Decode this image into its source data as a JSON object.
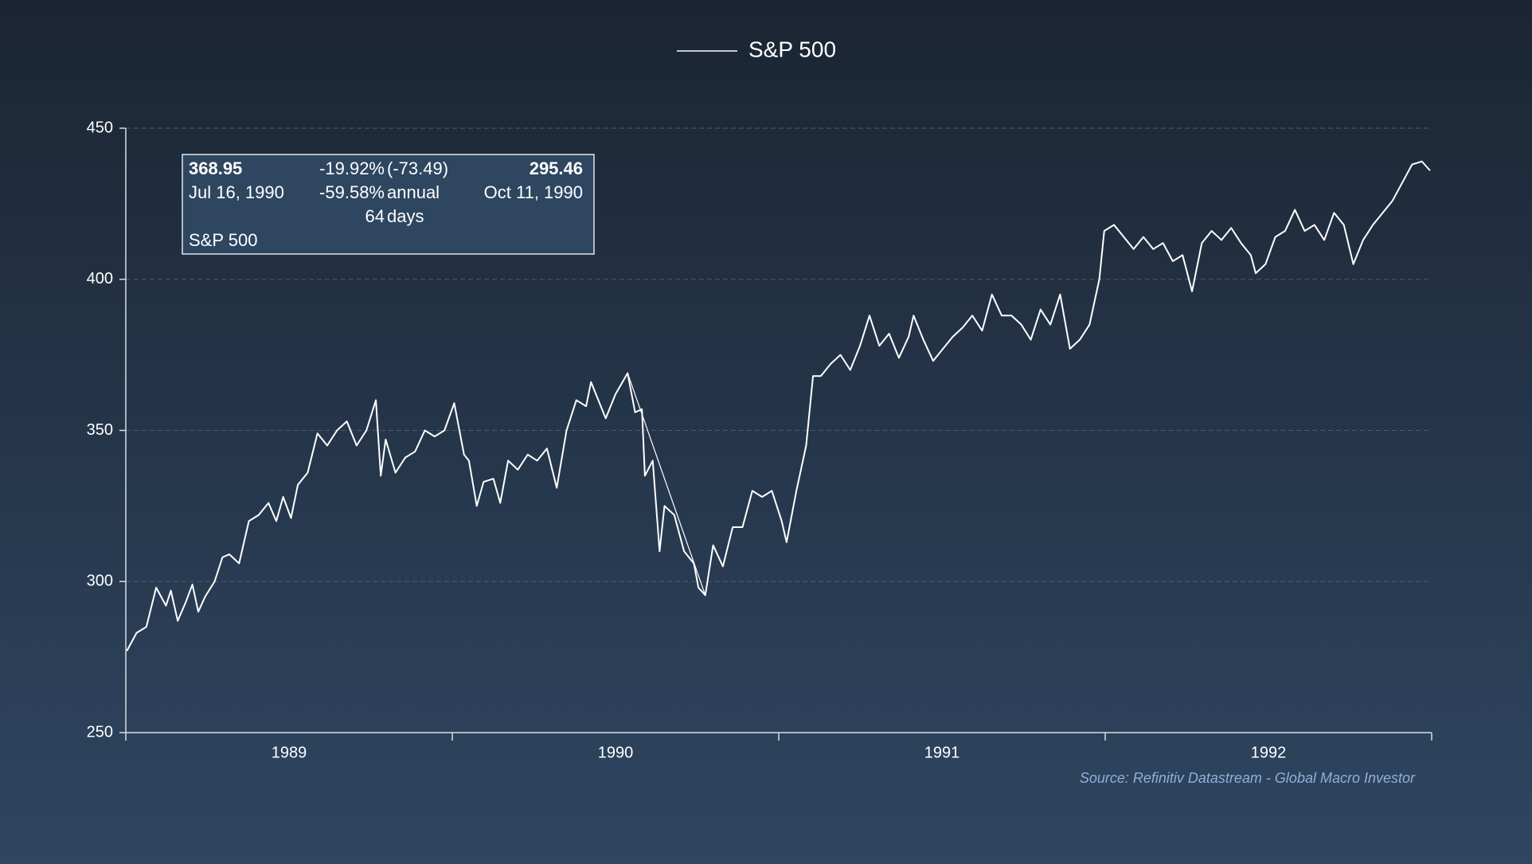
{
  "chart_data": {
    "type": "line",
    "legend": "top",
    "grid": true,
    "series": [
      {
        "name": "S&P 500",
        "color": "#ffffff",
        "values": [
          277,
          283,
          285,
          298,
          292,
          297,
          287,
          293,
          299,
          290,
          295,
          300,
          308,
          309,
          306,
          320,
          322,
          326,
          320,
          328,
          321,
          332,
          336,
          349,
          345,
          350,
          353,
          345,
          350,
          360,
          335,
          347,
          336,
          341,
          343,
          350,
          348,
          350,
          359,
          342,
          340,
          325,
          333,
          334,
          326,
          340,
          337,
          342,
          340,
          344,
          331,
          350,
          360,
          358,
          366,
          358,
          354,
          362,
          368.95,
          356,
          357,
          335,
          340,
          310,
          325,
          322,
          310,
          306,
          298,
          295.46,
          312,
          305,
          318,
          318,
          330,
          328,
          330,
          320,
          313,
          330,
          345,
          368,
          368,
          372,
          375,
          370,
          378,
          388,
          378,
          382,
          374,
          381,
          388,
          380,
          373,
          377,
          381,
          384,
          388,
          383,
          395,
          388,
          388,
          385,
          380,
          390,
          385,
          395,
          377,
          380,
          385,
          400,
          416,
          418,
          414,
          410,
          414,
          410,
          412,
          406,
          408,
          396,
          412,
          416,
          413,
          417,
          412,
          408,
          402,
          405,
          414,
          416,
          423,
          416,
          418,
          413,
          422,
          418,
          405,
          413,
          418,
          422,
          426,
          432,
          438,
          439,
          436
        ]
      }
    ],
    "x": [
      1989.003,
      1989.033,
      1989.063,
      1989.093,
      1989.123,
      1989.138,
      1989.159,
      1989.183,
      1989.204,
      1989.222,
      1989.243,
      1989.272,
      1989.296,
      1989.317,
      1989.347,
      1989.377,
      1989.407,
      1989.437,
      1989.461,
      1989.482,
      1989.506,
      1989.527,
      1989.557,
      1989.587,
      1989.617,
      1989.647,
      1989.677,
      1989.707,
      1989.737,
      1989.766,
      1989.781,
      1989.796,
      1989.826,
      1989.856,
      1989.886,
      1989.916,
      1989.946,
      1989.976,
      1990.006,
      1990.036,
      1990.051,
      1990.075,
      1990.096,
      1990.126,
      1990.147,
      1990.171,
      1990.201,
      1990.231,
      1990.26,
      1990.29,
      1990.32,
      1990.35,
      1990.38,
      1990.41,
      1990.425,
      1990.455,
      1990.47,
      1990.5,
      1990.537,
      1990.56,
      1990.581,
      1990.59,
      1990.614,
      1990.635,
      1990.65,
      1990.68,
      1990.71,
      1990.74,
      1990.754,
      1990.775,
      1990.799,
      1990.829,
      1990.859,
      1990.889,
      1990.919,
      1990.949,
      1990.979,
      1991.009,
      1991.024,
      1991.054,
      1991.084,
      1991.105,
      1991.129,
      1991.159,
      1991.189,
      1991.219,
      1991.249,
      1991.278,
      1991.308,
      1991.338,
      1991.368,
      1991.398,
      1991.413,
      1991.443,
      1991.473,
      1991.503,
      1991.533,
      1991.563,
      1991.593,
      1991.623,
      1991.653,
      1991.683,
      1991.713,
      1991.743,
      1991.772,
      1991.802,
      1991.832,
      1991.862,
      1991.892,
      1991.922,
      1991.952,
      1991.982,
      1991.997,
      1992.027,
      1992.057,
      1992.087,
      1992.117,
      1992.147,
      1992.177,
      1992.207,
      1992.237,
      1992.266,
      1992.296,
      1992.326,
      1992.356,
      1992.386,
      1992.416,
      1992.446,
      1992.461,
      1992.491,
      1992.521,
      1992.551,
      1992.581,
      1992.611,
      1992.641,
      1992.671,
      1992.701,
      1992.731,
      1992.76,
      1992.79,
      1992.82,
      1992.85,
      1992.88,
      1992.91,
      1992.94,
      1992.97,
      1992.995
    ],
    "xlim": [
      1989,
      1993
    ],
    "xticks": [
      {
        "value": 1989.5,
        "label": "1989"
      },
      {
        "value": 1990.5,
        "label": "1990"
      },
      {
        "value": 1991.5,
        "label": "1991"
      },
      {
        "value": 1992.5,
        "label": "1992"
      }
    ],
    "xtick_marks": [
      1989,
      1990,
      1991,
      1992,
      1993
    ],
    "ylim": [
      250,
      450
    ],
    "yticks": [
      250,
      300,
      350,
      400,
      450
    ],
    "annotation": {
      "start": {
        "x": 1990.537,
        "value": 368.95,
        "date": "Jul 16, 1990"
      },
      "end": {
        "x": 1990.775,
        "value": 295.46,
        "date": "Oct 11, 1990"
      },
      "change": {
        "value": -19.92,
        "label": "-19.92%"
      },
      "change_points": {
        "value": -73.49,
        "label": "(-73.49)"
      },
      "annualized": {
        "value": -59.58,
        "label": "-59.58%"
      },
      "annual_label": "annual",
      "days": 64,
      "days_label": "days",
      "series_name": "S&P 500"
    },
    "source": "Source: Refinitiv Datastream - Global Macro Investor"
  }
}
